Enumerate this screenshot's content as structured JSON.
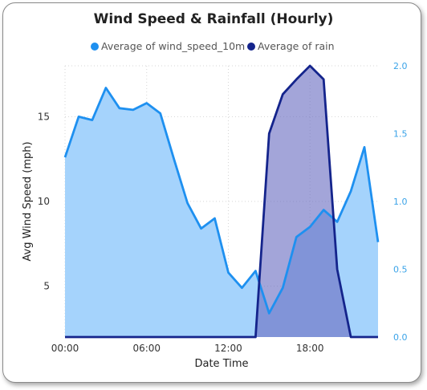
{
  "chart_data": {
    "type": "area",
    "title": "Wind Speed & Rainfall (Hourly)",
    "xlabel": "Date Time",
    "ylabel": "Avg Wind Speed (mph)",
    "x": [
      0,
      1,
      2,
      3,
      4,
      5,
      6,
      7,
      8,
      9,
      10,
      11,
      12,
      13,
      14,
      15,
      16,
      17,
      18,
      19,
      20,
      21,
      22,
      23
    ],
    "x_ticks": [
      {
        "hour": 0,
        "label": "00:00"
      },
      {
        "hour": 6,
        "label": "06:00"
      },
      {
        "hour": 12,
        "label": "12:00"
      },
      {
        "hour": 18,
        "label": "18:00"
      }
    ],
    "y_left": {
      "lim": [
        2,
        18
      ],
      "ticks": [
        5,
        10,
        15
      ],
      "tick_labels": [
        "5",
        "10",
        "15"
      ]
    },
    "y_right": {
      "lim": [
        0,
        2.0
      ],
      "ticks": [
        0,
        0.5,
        1.0,
        1.5,
        2.0
      ],
      "tick_labels": [
        "0.0",
        "0.5",
        "1.0",
        "1.5",
        "2.0"
      ]
    },
    "grid": true,
    "legend_position": "top-center",
    "series": [
      {
        "name": "Average of wind_speed_10m",
        "axis": "left",
        "color": "#1e90f0",
        "fill": "#a5d3fc",
        "values": [
          12.6,
          15.0,
          14.8,
          16.7,
          15.5,
          15.4,
          15.8,
          15.2,
          12.5,
          9.9,
          8.4,
          9.0,
          5.8,
          4.9,
          5.9,
          3.4,
          4.9,
          7.9,
          8.5,
          9.5,
          8.8,
          10.6,
          13.2,
          7.6
        ]
      },
      {
        "name": "Average of rain",
        "axis": "right",
        "color": "#14248c",
        "fill": "#6a6ec2",
        "values": [
          0,
          0,
          0,
          0,
          0,
          0,
          0,
          0,
          0,
          0,
          0,
          0,
          0,
          0,
          0,
          1.5,
          1.79,
          1.9,
          2.0,
          1.9,
          0.5,
          0,
          0,
          0
        ]
      }
    ]
  }
}
